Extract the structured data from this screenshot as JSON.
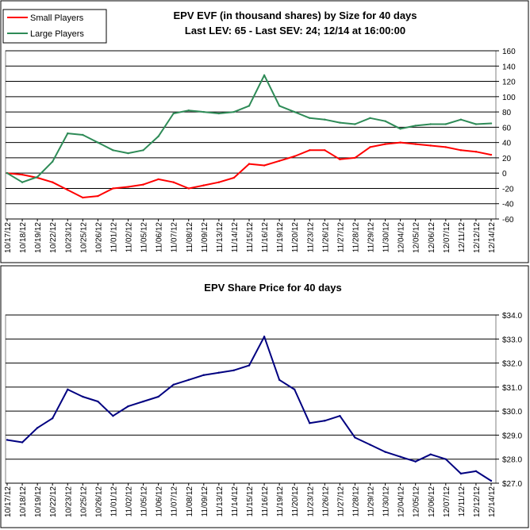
{
  "chart_data": [
    {
      "type": "line",
      "title": "EPV EVF (in thousand shares) by Size for 40 days",
      "subtitle": "Last LEV: 65 - Last SEV: 24; 12/14 at 16:00:00",
      "xlabel": "",
      "ylabel": "",
      "ylim": [
        -60,
        160
      ],
      "yticks": [
        "-60",
        "-40",
        "-20",
        "0",
        "20",
        "40",
        "60",
        "80",
        "100",
        "120",
        "140",
        "160"
      ],
      "y_axis_side": "right",
      "grid": true,
      "legend_position": "top-left",
      "categories": [
        "10/17/12",
        "10/18/12",
        "10/19/12",
        "10/22/12",
        "10/23/12",
        "10/25/12",
        "10/26/12",
        "11/01/12",
        "11/02/12",
        "11/05/12",
        "11/06/12",
        "11/07/12",
        "11/08/12",
        "11/09/12",
        "11/13/12",
        "11/14/12",
        "11/15/12",
        "11/16/12",
        "11/19/12",
        "11/20/12",
        "11/23/12",
        "11/26/12",
        "11/27/12",
        "11/28/12",
        "11/29/12",
        "11/30/12",
        "12/04/12",
        "12/05/12",
        "12/06/12",
        "12/07/12",
        "12/11/12",
        "12/12/12",
        "12/14/12"
      ],
      "series": [
        {
          "name": "Small Players",
          "color": "#ff0000",
          "values": [
            0,
            -2,
            -6,
            -12,
            -22,
            -32,
            -30,
            -20,
            -18,
            -15,
            -8,
            -12,
            -20,
            -16,
            -12,
            -6,
            12,
            10,
            16,
            22,
            30,
            30,
            18,
            20,
            34,
            38,
            40,
            38,
            36,
            34,
            30,
            28,
            24
          ]
        },
        {
          "name": "Large Players",
          "color": "#2e8b57",
          "values": [
            0,
            -12,
            -5,
            15,
            52,
            50,
            40,
            30,
            26,
            30,
            48,
            78,
            82,
            80,
            78,
            80,
            88,
            128,
            88,
            80,
            72,
            70,
            66,
            64,
            72,
            68,
            58,
            62,
            64,
            64,
            70,
            64,
            65
          ]
        }
      ]
    },
    {
      "type": "line",
      "title": "EPV Share Price for 40 days",
      "xlabel": "",
      "ylabel": "",
      "ylim": [
        27,
        34
      ],
      "yticks": [
        "$27.0",
        "$28.0",
        "$29.0",
        "$30.0",
        "$31.0",
        "$32.0",
        "$33.0",
        "$34.0"
      ],
      "y_axis_side": "right",
      "grid": true,
      "categories": [
        "10/17/12",
        "10/18/12",
        "10/19/12",
        "10/22/12",
        "10/23/12",
        "10/25/12",
        "10/26/12",
        "11/01/12",
        "11/02/12",
        "11/05/12",
        "11/06/12",
        "11/07/12",
        "11/08/12",
        "11/09/12",
        "11/13/12",
        "11/14/12",
        "11/15/12",
        "11/16/12",
        "11/19/12",
        "11/20/12",
        "11/23/12",
        "11/26/12",
        "11/27/12",
        "11/28/12",
        "11/29/12",
        "11/30/12",
        "12/04/12",
        "12/05/12",
        "12/06/12",
        "12/07/12",
        "12/11/12",
        "12/12/12",
        "12/14/12"
      ],
      "series": [
        {
          "color": "#000080",
          "values": [
            28.8,
            28.7,
            29.3,
            29.7,
            30.9,
            30.6,
            30.4,
            29.8,
            30.2,
            30.4,
            30.6,
            31.1,
            31.3,
            31.5,
            31.6,
            31.7,
            31.9,
            33.1,
            31.3,
            30.9,
            29.5,
            29.6,
            29.8,
            28.9,
            28.6,
            28.3,
            28.1,
            27.9,
            28.2,
            28.0,
            27.4,
            27.5,
            27.1
          ]
        }
      ]
    }
  ]
}
